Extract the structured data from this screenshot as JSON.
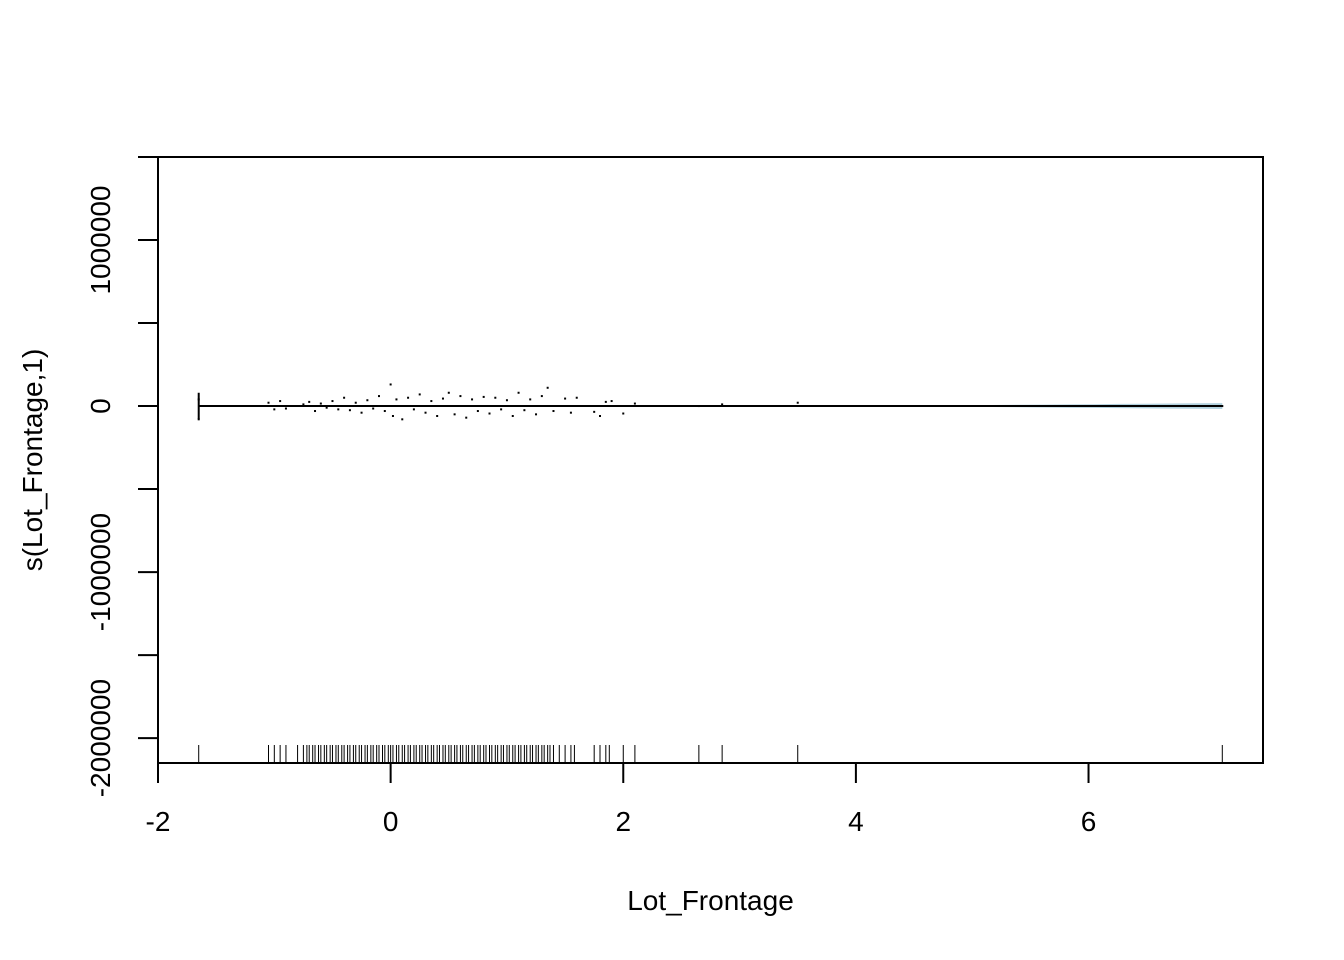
{
  "chart_data": {
    "type": "scatter",
    "title": "",
    "xlabel": "Lot_Frontage",
    "ylabel": "s(Lot_Frontage,1)",
    "xlim": [
      -2,
      7.5
    ],
    "ylim": [
      -2150000,
      1500000
    ],
    "x_ticks": [
      -2,
      0,
      2,
      4,
      6
    ],
    "x_tick_labels": [
      "-2",
      "0",
      "2",
      "4",
      "6"
    ],
    "y_ticks": [
      -2000000,
      -1000000,
      0,
      1000000
    ],
    "y_tick_labels": [
      "-2000000",
      "-1000000",
      "0",
      "1000000"
    ],
    "y_minor_ticks": [
      -1500000,
      -500000,
      500000,
      1500000
    ],
    "grid": false,
    "smooth": {
      "x": [
        -1.65,
        7.15
      ],
      "y": [
        0,
        0
      ],
      "band_color": "#7fb3c8",
      "line_color": "#000000"
    },
    "residuals": {
      "x": [
        -1.65,
        -1.65,
        -1.05,
        -1.0,
        -0.95,
        -0.9,
        -0.75,
        -0.7,
        -0.65,
        -0.6,
        -0.55,
        -0.5,
        -0.45,
        -0.4,
        -0.35,
        -0.3,
        -0.25,
        -0.2,
        -0.15,
        -0.1,
        -0.05,
        0.0,
        0.02,
        0.05,
        0.1,
        0.15,
        0.2,
        0.25,
        0.3,
        0.35,
        0.4,
        0.45,
        0.5,
        0.55,
        0.6,
        0.65,
        0.7,
        0.75,
        0.8,
        0.85,
        0.9,
        0.95,
        1.0,
        1.05,
        1.1,
        1.15,
        1.2,
        1.25,
        1.3,
        1.35,
        1.4,
        1.5,
        1.55,
        1.6,
        1.75,
        1.8,
        1.85,
        1.9,
        2.0,
        2.1,
        2.65,
        2.85,
        3.5,
        7.15
      ],
      "y": [
        -80000,
        40000,
        20000,
        -20000,
        30000,
        -15000,
        10000,
        25000,
        -30000,
        15000,
        -10000,
        30000,
        -20000,
        50000,
        -25000,
        20000,
        -40000,
        35000,
        -15000,
        60000,
        -30000,
        130000,
        -60000,
        40000,
        -80000,
        50000,
        -20000,
        70000,
        -40000,
        30000,
        -60000,
        45000,
        80000,
        -50000,
        60000,
        -70000,
        40000,
        -30000,
        55000,
        -45000,
        50000,
        -20000,
        35000,
        -60000,
        80000,
        -25000,
        40000,
        -50000,
        60000,
        110000,
        -30000,
        45000,
        -40000,
        50000,
        -35000,
        -60000,
        25000,
        30000,
        -45000,
        15000,
        0,
        10000,
        20000,
        0
      ]
    },
    "rug_x": [
      -1.65,
      -1.05,
      -1.0,
      -0.95,
      -0.9,
      -0.8,
      -0.75,
      -0.72,
      -0.7,
      -0.67,
      -0.65,
      -0.62,
      -0.6,
      -0.57,
      -0.55,
      -0.52,
      -0.5,
      -0.47,
      -0.45,
      -0.42,
      -0.4,
      -0.37,
      -0.35,
      -0.32,
      -0.3,
      -0.27,
      -0.25,
      -0.22,
      -0.2,
      -0.17,
      -0.15,
      -0.12,
      -0.1,
      -0.07,
      -0.05,
      -0.02,
      0.0,
      0.02,
      0.05,
      0.07,
      0.1,
      0.12,
      0.15,
      0.17,
      0.2,
      0.22,
      0.25,
      0.27,
      0.3,
      0.32,
      0.35,
      0.37,
      0.4,
      0.42,
      0.45,
      0.47,
      0.5,
      0.52,
      0.55,
      0.57,
      0.6,
      0.62,
      0.65,
      0.67,
      0.7,
      0.72,
      0.75,
      0.77,
      0.8,
      0.82,
      0.85,
      0.87,
      0.9,
      0.92,
      0.95,
      0.97,
      1.0,
      1.02,
      1.05,
      1.07,
      1.1,
      1.12,
      1.15,
      1.17,
      1.2,
      1.22,
      1.25,
      1.27,
      1.3,
      1.32,
      1.35,
      1.37,
      1.4,
      1.45,
      1.5,
      1.55,
      1.58,
      1.75,
      1.8,
      1.85,
      1.88,
      2.0,
      2.1,
      2.65,
      2.85,
      3.5,
      7.15
    ]
  }
}
